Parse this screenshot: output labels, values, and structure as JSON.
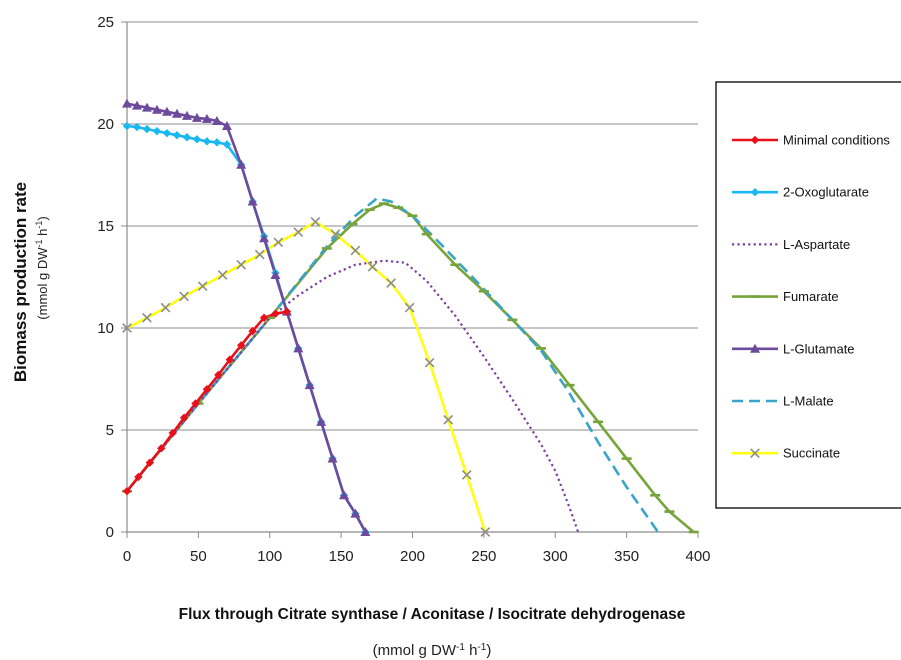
{
  "chart_data": {
    "type": "line",
    "xlabel": "Flux through Citrate synthase  / Aconitase / Isocitrate dehydrogenase",
    "xlabel_unit": "(mmol g DW-1 h-1)",
    "ylabel": "Biomass production rate",
    "ylabel_unit": "(mmol g DW-1 h-1)",
    "xlim": [
      0,
      400
    ],
    "ylim": [
      0,
      25
    ],
    "xticks": [
      "0",
      "50",
      "100",
      "150",
      "200",
      "250",
      "300",
      "350",
      "400"
    ],
    "yticks": [
      "0",
      "5",
      "10",
      "15",
      "20",
      "25"
    ],
    "grid": "horizontal",
    "legend_position": "right",
    "series": [
      {
        "name": "Minimal conditions",
        "color": "#e8101a",
        "style": "solid",
        "marker": "diamond",
        "x": [
          0,
          8,
          16,
          24,
          32,
          40,
          48,
          56,
          64,
          72,
          80,
          88,
          96,
          104,
          112
        ],
        "y": [
          2.0,
          2.7,
          3.4,
          4.1,
          4.85,
          5.6,
          6.3,
          7.0,
          7.7,
          8.45,
          9.15,
          9.85,
          10.5,
          10.7,
          10.8
        ]
      },
      {
        "name": "2-Oxoglutarate",
        "color": "#1ab8f0",
        "style": "solid",
        "marker": "diamond",
        "x": [
          0,
          7,
          14,
          21,
          28,
          35,
          42,
          49,
          56,
          63,
          70,
          80,
          88,
          96,
          104,
          112,
          120,
          128,
          136,
          144,
          152,
          160,
          167
        ],
        "y": [
          19.9,
          19.85,
          19.75,
          19.65,
          19.55,
          19.45,
          19.35,
          19.25,
          19.15,
          19.1,
          19.0,
          18.0,
          16.2,
          14.5,
          12.7,
          10.8,
          9.0,
          7.2,
          5.4,
          3.6,
          1.8,
          0.9,
          0
        ]
      },
      {
        "name": "L-Aspartate",
        "color": "#7a3ea0",
        "style": "dotted",
        "marker": "none",
        "x": [
          0,
          50,
          100,
          120,
          140,
          160,
          180,
          195,
          210,
          230,
          250,
          270,
          290,
          300,
          310,
          316
        ],
        "y": [
          2.0,
          6.3,
          10.5,
          11.6,
          12.5,
          13.1,
          13.3,
          13.2,
          12.3,
          10.6,
          8.6,
          6.5,
          4.3,
          3.0,
          1.2,
          0
        ]
      },
      {
        "name": "Fumarate",
        "color": "#77a43a",
        "style": "solid",
        "marker": "dash",
        "x": [
          0,
          50,
          100,
          140,
          158,
          170,
          180,
          190,
          200,
          210,
          230,
          250,
          270,
          290,
          310,
          330,
          350,
          370,
          380,
          397
        ],
        "y": [
          2.0,
          6.3,
          10.5,
          13.9,
          15.1,
          15.8,
          16.1,
          15.9,
          15.5,
          14.6,
          13.1,
          11.8,
          10.4,
          9.0,
          7.2,
          5.4,
          3.6,
          1.8,
          1.0,
          0
        ]
      },
      {
        "name": "L-Glutamate",
        "color": "#6e4a9c",
        "style": "solid",
        "marker": "triangle",
        "x": [
          0,
          7,
          14,
          21,
          28,
          35,
          42,
          49,
          56,
          63,
          70,
          80,
          88,
          96,
          104,
          112,
          120,
          128,
          136,
          144,
          152,
          160,
          167
        ],
        "y": [
          21.0,
          20.9,
          20.8,
          20.7,
          20.6,
          20.5,
          20.4,
          20.3,
          20.25,
          20.15,
          19.9,
          18.0,
          16.2,
          14.4,
          12.6,
          10.8,
          9.0,
          7.2,
          5.4,
          3.6,
          1.8,
          0.9,
          0
        ]
      },
      {
        "name": "L-Malate",
        "color": "#3aa4c8",
        "style": "dashed",
        "marker": "none",
        "x": [
          0,
          50,
          100,
          140,
          160,
          175,
          185,
          200,
          220,
          250,
          270,
          290,
          310,
          330,
          350,
          372
        ],
        "y": [
          2.0,
          6.3,
          10.5,
          14.0,
          15.5,
          16.35,
          16.2,
          15.5,
          14.1,
          11.9,
          10.4,
          8.9,
          6.8,
          4.4,
          2.2,
          0
        ]
      },
      {
        "name": "Succinate",
        "color": "#ffff14",
        "style": "solid",
        "marker": "x",
        "x": [
          0,
          14,
          27,
          40,
          53,
          67,
          80,
          93,
          106,
          120,
          132,
          146,
          160,
          172,
          185,
          198,
          212,
          225,
          238,
          251
        ],
        "y": [
          10.0,
          10.5,
          11.0,
          11.55,
          12.05,
          12.6,
          13.1,
          13.6,
          14.2,
          14.7,
          15.2,
          14.6,
          13.8,
          13.0,
          12.2,
          11.0,
          8.3,
          5.5,
          2.8,
          0
        ]
      }
    ]
  }
}
